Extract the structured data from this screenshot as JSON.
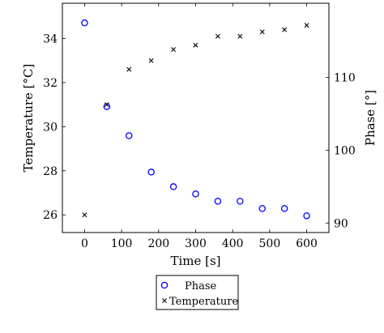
{
  "chart_data": {
    "type": "scatter",
    "xlabel": "Time [s]",
    "ylabel_left": "Temperature [°C]",
    "ylabel_right": "Phase [°]",
    "xlim": [
      -60,
      660
    ],
    "ylim_left": [
      25.2,
      35.6
    ],
    "ylim_right": [
      88.7,
      120.2
    ],
    "x_ticks": [
      0,
      100,
      200,
      300,
      400,
      500,
      600
    ],
    "y_left_ticks": [
      26,
      28,
      30,
      32,
      34
    ],
    "y_right_ticks": [
      90,
      100,
      110
    ],
    "legend_position": "bottom-center",
    "series": [
      {
        "name": "Phase",
        "axis": "right",
        "marker": "circle",
        "color": "#0000ff",
        "x": [
          0,
          60,
          120,
          180,
          240,
          300,
          360,
          420,
          480,
          540,
          600
        ],
        "y": [
          117.5,
          106,
          102,
          97,
          95,
          94,
          93,
          93,
          92,
          92,
          91
        ]
      },
      {
        "name": "Temperature",
        "axis": "left",
        "marker": "x",
        "color": "#000000",
        "x": [
          0,
          60,
          120,
          180,
          240,
          300,
          360,
          420,
          480,
          540,
          600
        ],
        "y": [
          26.0,
          31.0,
          32.6,
          33.0,
          33.5,
          33.7,
          34.1,
          34.1,
          34.3,
          34.4,
          34.6
        ]
      }
    ]
  }
}
